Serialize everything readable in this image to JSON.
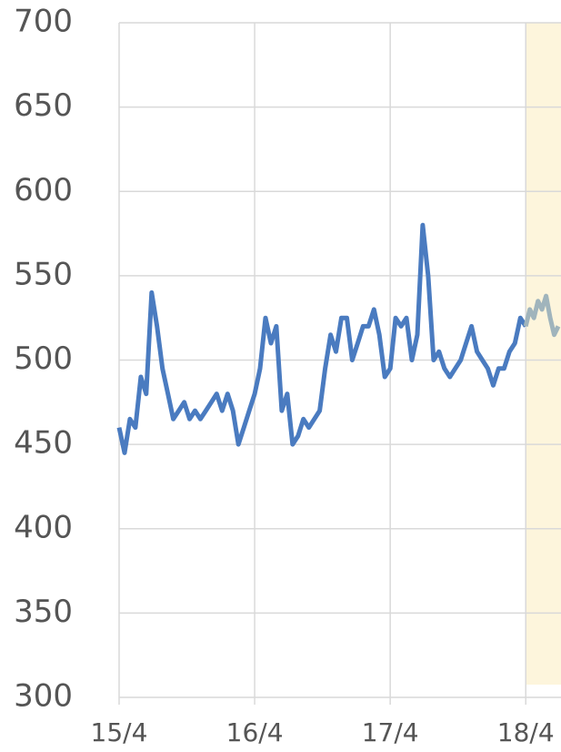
{
  "chart_data": {
    "type": "line",
    "series": [
      {
        "color": "#4a7bc0",
        "x": [
          15.25,
          15.29,
          15.33,
          15.37,
          15.41,
          15.45,
          15.49,
          15.53,
          15.57,
          15.61,
          15.65,
          15.69,
          15.73,
          15.77,
          15.81,
          15.85,
          15.89,
          15.93,
          15.97,
          16.01,
          16.05,
          16.09,
          16.13,
          16.17,
          16.21,
          16.25,
          16.29,
          16.33,
          16.37,
          16.41,
          16.45,
          16.49,
          16.53,
          16.57,
          16.61,
          16.65,
          16.69,
          16.73,
          16.77,
          16.81,
          16.85,
          16.89,
          16.93,
          16.97,
          17.01,
          17.05,
          17.09,
          17.13,
          17.17,
          17.21,
          17.25,
          17.29,
          17.33,
          17.37,
          17.41,
          17.45,
          17.49,
          17.53,
          17.57,
          17.61,
          17.65,
          17.69,
          17.73,
          17.77,
          17.81,
          17.85,
          17.89,
          17.93,
          17.97,
          18.01,
          18.05,
          18.09,
          18.13,
          18.17,
          18.21,
          18.25
        ],
        "values": [
          460,
          445,
          465,
          460,
          490,
          480,
          540,
          520,
          495,
          480,
          465,
          470,
          475,
          465,
          470,
          465,
          470,
          475,
          480,
          470,
          480,
          470,
          450,
          460,
          470,
          480,
          495,
          525,
          510,
          520,
          470,
          480,
          450,
          455,
          465,
          460,
          465,
          470,
          495,
          515,
          505,
          525,
          525,
          500,
          510,
          520,
          520,
          530,
          515,
          490,
          495,
          525,
          520,
          525,
          500,
          515,
          580,
          550,
          500,
          505,
          495,
          490,
          495,
          500,
          510,
          520,
          505,
          500,
          495,
          485,
          495,
          495,
          505,
          510,
          525,
          520
        ]
      },
      {
        "color": "#a0b4bc",
        "x": [
          18.25,
          18.28,
          18.31,
          18.34,
          18.37,
          18.4,
          18.43,
          18.46,
          18.49
        ],
        "values": [
          520,
          530,
          525,
          535,
          530,
          538,
          525,
          515,
          520
        ]
      }
    ],
    "xlim": [
      15.25,
      18.51
    ],
    "xticks": [
      {
        "value": 15.25,
        "label": "15/4"
      },
      {
        "value": 16.25,
        "label": "16/4"
      },
      {
        "value": 17.25,
        "label": "17/4"
      },
      {
        "value": 18.25,
        "label": "18/4"
      }
    ],
    "ylim": [
      300,
      700
    ],
    "yticks": [
      300,
      350,
      400,
      450,
      500,
      550,
      600,
      650,
      700
    ],
    "grid": true,
    "highlight_range": [
      18.25,
      18.51
    ],
    "highlight_color": "#fdf5dc"
  }
}
